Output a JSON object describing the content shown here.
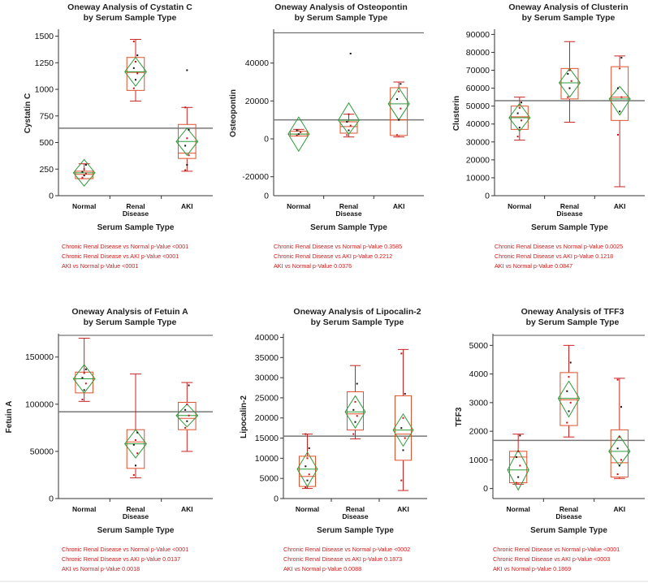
{
  "colors": {
    "box": "#e0502a",
    "diamond": "#2e9b3a",
    "point": "#c81414",
    "whisker": "#cc2222",
    "grand_mean": "#777777",
    "note": "#cc1e1e"
  },
  "chart_data": [
    {
      "type": "box",
      "title": "Oneway Analysis of Cystatin C",
      "subtitle": "by Serum Sample Type",
      "xlabel": "Serum Sample Type",
      "ylabel": "Cystatin C",
      "categories": [
        "Normal",
        "Renal\nDisease",
        "AKI"
      ],
      "ylim": [
        0,
        1550
      ],
      "yticks": [
        0,
        250,
        500,
        750,
        1000,
        1250,
        1500
      ],
      "ytick_labels": [
        "0",
        "250",
        "500",
        "750",
        "1000",
        "1250",
        "1500"
      ],
      "grand_mean": 635,
      "groups": [
        {
          "whisker_low": 160,
          "q1": 160,
          "median": 200,
          "q3": 230,
          "whisker_high": 300,
          "mean": 215,
          "ci_low": 90,
          "ci_high": 340,
          "points": [
            170,
            190,
            210,
            225,
            250,
            290
          ]
        },
        {
          "whisker_low": 890,
          "q1": 990,
          "median": 1160,
          "q3": 1300,
          "whisker_high": 1470,
          "mean": 1165,
          "ci_low": 1030,
          "ci_high": 1300,
          "points": [
            1010,
            1090,
            1150,
            1200,
            1260,
            1320,
            1450
          ]
        },
        {
          "whisker_low": 230,
          "q1": 350,
          "median": 400,
          "q3": 670,
          "whisker_high": 830,
          "mean": 510,
          "ci_low": 380,
          "ci_high": 635,
          "points": [
            240,
            290,
            380,
            470,
            540,
            620,
            830,
            1180
          ]
        }
      ],
      "notes": [
        "Chronic Renal Disease vs Normal p-Value <0001",
        "Chronic Renal Disease vs AKI p-Value <0001",
        "AKI vs Normal p-Value <0001"
      ]
    },
    {
      "type": "box",
      "title": "Oneway Analysis of Osteopontin",
      "subtitle": "by Serum Sample Type",
      "xlabel": "Serum Sample Type",
      "ylabel": "Osteopontin",
      "categories": [
        "Normal",
        "Renal\nDisease",
        "AKI"
      ],
      "ylim": [
        -30000,
        57000
      ],
      "yticks": [
        -20000,
        0,
        20000,
        40000
      ],
      "ytick_labels": [
        "-20000",
        "0",
        "20000",
        "40000"
      ],
      "y_bottom_label": "0",
      "grand_mean": 10000,
      "top_line": 56000,
      "groups": [
        {
          "whisker_low": 1500,
          "q1": 1500,
          "median": 2500,
          "q3": 4000,
          "whisker_high": 5000,
          "mean": 2500,
          "ci_low": -6500,
          "ci_high": 11500,
          "points": [
            1800,
            2500,
            3500,
            4500
          ]
        },
        {
          "whisker_low": 1000,
          "q1": 3000,
          "median": 6500,
          "q3": 9000,
          "whisker_high": 13000,
          "mean": 9800,
          "ci_low": 2500,
          "ci_high": 19000,
          "points": [
            2000,
            4500,
            7000,
            9000,
            13000,
            45000
          ]
        },
        {
          "whisker_low": 1000,
          "q1": 1800,
          "median": 10000,
          "q3": 27000,
          "whisker_high": 30000,
          "mean": 18500,
          "ci_low": 10000,
          "ci_high": 27000,
          "points": [
            2000,
            10000,
            16000,
            21000,
            25000,
            29000
          ]
        }
      ],
      "notes": [
        "Chronic Renal Disease vs Normal p-Value 0.3585",
        "Chronic Renal Disease vs AKI p-Value 0.2212",
        "AKI vs Normal p-Value 0.0376"
      ]
    },
    {
      "type": "box",
      "title": "Oneway Analysis of Clusterin",
      "subtitle": "by Serum Sample Type",
      "xlabel": "Serum Sample Type",
      "ylabel": "Clusterin",
      "categories": [
        "Normal",
        "Renal\nDisease",
        "AKI"
      ],
      "ylim": [
        0,
        92000
      ],
      "yticks": [
        0,
        10000,
        20000,
        30000,
        40000,
        50000,
        60000,
        70000,
        80000,
        90000
      ],
      "ytick_labels": [
        "0",
        "10000",
        "20000",
        "30000",
        "40000",
        "50000",
        "60000",
        "70000",
        "80000",
        "90000"
      ],
      "grand_mean": 53000,
      "groups": [
        {
          "whisker_low": 31000,
          "q1": 37000,
          "median": 44000,
          "q3": 50000,
          "whisker_high": 55000,
          "mean": 43500,
          "ci_low": 36000,
          "ci_high": 51500,
          "points": [
            33000,
            38000,
            42000,
            46000,
            49000,
            52000
          ]
        },
        {
          "whisker_low": 41000,
          "q1": 54000,
          "median": 63000,
          "q3": 71000,
          "whisker_high": 86000,
          "mean": 63000,
          "ci_low": 55000,
          "ci_high": 71000,
          "points": [
            55000,
            60000,
            64000,
            68000,
            70000
          ]
        },
        {
          "whisker_low": 5000,
          "q1": 42000,
          "median": 55000,
          "q3": 72000,
          "whisker_high": 78000,
          "mean": 54000,
          "ci_low": 45000,
          "ci_high": 61000,
          "points": [
            34000,
            47000,
            55000,
            60000,
            71000,
            77000
          ]
        }
      ],
      "notes": [
        "Chronic Renal Disease vs Normal p-Value 0.0025",
        "Chronic Renal Disease vs AKI p-Value 0.1218",
        "AKI vs Normal p-Value 0.0847"
      ]
    },
    {
      "type": "box",
      "title": "Oneway Analysis of Fetuin A",
      "subtitle": "by Serum Sample Type",
      "xlabel": "Serum Sample Type",
      "ylabel": "Fetuin A",
      "categories": [
        "Normal",
        "Renal\nDisease",
        "AKI"
      ],
      "ylim": [
        0,
        173000
      ],
      "yticks": [
        0,
        50000,
        100000,
        150000
      ],
      "ytick_labels": [
        "0",
        "50000",
        "100000",
        "150000"
      ],
      "grand_mean": 92000,
      "top_line": 173000,
      "groups": [
        {
          "whisker_low": 103000,
          "q1": 112000,
          "median": 127000,
          "q3": 134000,
          "whisker_high": 170000,
          "mean": 127000,
          "ci_low": 112000,
          "ci_high": 142000,
          "points": [
            105000,
            115000,
            122000,
            128000,
            133000,
            137000
          ]
        },
        {
          "whisker_low": 22000,
          "q1": 32000,
          "median": 60000,
          "q3": 73000,
          "whisker_high": 132000,
          "mean": 58000,
          "ci_low": 43000,
          "ci_high": 73000,
          "points": [
            25000,
            35000,
            48000,
            57000,
            62000,
            70000
          ]
        },
        {
          "whisker_low": 50000,
          "q1": 73000,
          "median": 85000,
          "q3": 102000,
          "whisker_high": 123000,
          "mean": 88000,
          "ci_low": 76000,
          "ci_high": 100000,
          "points": [
            75000,
            82000,
            88000,
            94000,
            100000,
            120000
          ]
        }
      ],
      "notes": [
        "Chronic Renal Disease vs Normal p-Value <0001",
        "Chronic Renal Disease vs AKI p-Value 0.0137",
        "AKI vs Normal p-Value 0.0018"
      ]
    },
    {
      "type": "box",
      "title": "Oneway Analysis of Lipocalin-2",
      "subtitle": "by Serum Sample Type",
      "xlabel": "Serum Sample Type",
      "ylabel": "Lipocalin-2",
      "categories": [
        "Normal",
        "Renal\nDisease",
        "AKI"
      ],
      "ylim": [
        0,
        40500
      ],
      "yticks": [
        0,
        5000,
        10000,
        15000,
        20000,
        25000,
        30000,
        35000,
        40000
      ],
      "ytick_labels": [
        "0",
        "5000",
        "10000",
        "15000",
        "20000",
        "25000",
        "30000",
        "35000",
        "40000"
      ],
      "grand_mean": 15500,
      "groups": [
        {
          "whisker_low": 2500,
          "q1": 3000,
          "median": 5500,
          "q3": 10500,
          "whisker_high": 16000,
          "mean": 7300,
          "ci_low": 3000,
          "ci_high": 11500,
          "points": [
            2800,
            4500,
            6000,
            8000,
            10000,
            12500,
            16000
          ]
        },
        {
          "whisker_low": 14800,
          "q1": 17000,
          "median": 21000,
          "q3": 26500,
          "whisker_high": 33000,
          "mean": 21500,
          "ci_low": 17500,
          "ci_high": 25500,
          "points": [
            16000,
            19000,
            20500,
            22000,
            24000,
            28500
          ]
        },
        {
          "whisker_low": 2000,
          "q1": 9500,
          "median": 16000,
          "q3": 25500,
          "whisker_high": 37000,
          "mean": 17000,
          "ci_low": 13000,
          "ci_high": 21000,
          "points": [
            4500,
            12000,
            15000,
            17500,
            20000,
            26000,
            36000
          ]
        }
      ],
      "notes": [
        "Chronic Renal Disease vs Normal p-Value <0002",
        "Chronic Renal Disease vs AKI p-Value 0.1873",
        "AKI vs Normal p-Value 0.0088"
      ]
    },
    {
      "type": "box",
      "title": "Oneway Analysis of TFF3",
      "subtitle": "by Serum Sample Type",
      "xlabel": "Serum Sample Type",
      "ylabel": "TFF3",
      "categories": [
        "Normal",
        "Renal\nDisease",
        "AKI"
      ],
      "ylim": [
        -350,
        5350
      ],
      "yticks": [
        0,
        1000,
        2000,
        3000,
        4000,
        5000
      ],
      "ytick_labels": [
        "0",
        "1000",
        "2000",
        "3000",
        "4000",
        "5000"
      ],
      "grand_mean": 1680,
      "top_line": 5350,
      "groups": [
        {
          "whisker_low": 150,
          "q1": 200,
          "median": 1100,
          "q3": 1300,
          "whisker_high": 1900,
          "mean": 650,
          "ci_low": -50,
          "ci_high": 1350,
          "points": [
            200,
            400,
            800,
            1100,
            1300,
            1850
          ]
        },
        {
          "whisker_low": 1800,
          "q1": 2200,
          "median": 3100,
          "q3": 4050,
          "whisker_high": 5000,
          "mean": 3150,
          "ci_low": 2500,
          "ci_high": 3750,
          "points": [
            2300,
            2700,
            3000,
            3400,
            3900,
            4400
          ]
        },
        {
          "whisker_low": 350,
          "q1": 400,
          "median": 900,
          "q3": 2050,
          "whisker_high": 3850,
          "mean": 1300,
          "ci_low": 800,
          "ci_high": 1850,
          "points": [
            500,
            800,
            1000,
            1400,
            1800,
            2850,
            3800
          ]
        }
      ],
      "notes": [
        "Chronic Renal Disease vs Normal p-Value <0001",
        "Chronic Renal Disease vs AKI p-Value <0003",
        "AKI vs Normal p-Value 0.1869"
      ]
    }
  ]
}
